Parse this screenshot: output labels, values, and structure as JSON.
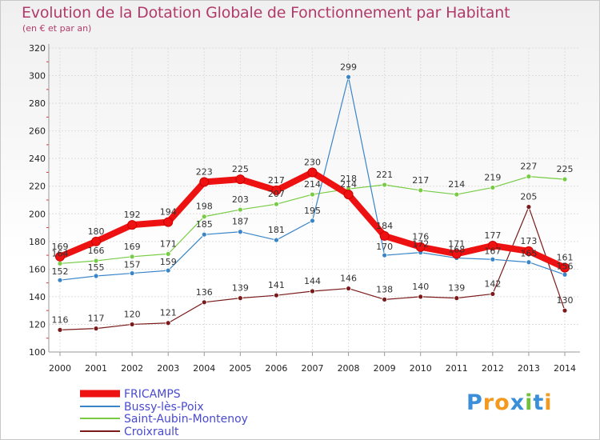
{
  "header": {
    "title": "Evolution de la Dotation Globale de Fonctionnement par Habitant",
    "subtitle": "(en € et par an)"
  },
  "logo": {
    "text": "Proxiti",
    "letters": [
      "P",
      "r",
      "o",
      "x",
      "i",
      "t",
      "i"
    ],
    "colors": [
      "#3a8fd8",
      "#f39a1e",
      "#f39a1e",
      "#3a8fd8",
      "#6fc23a",
      "#3a8fd8",
      "#f39a1e"
    ]
  },
  "chart_data": {
    "type": "line",
    "title": "Evolution de la Dotation Globale de Fonctionnement par Habitant",
    "subtitle": "(en € et par an)",
    "xlabel": "",
    "ylabel": "",
    "ylim": [
      100,
      320
    ],
    "yticks": [
      100,
      120,
      140,
      160,
      180,
      200,
      220,
      240,
      260,
      280,
      300,
      320
    ],
    "grid": true,
    "legend_position": "bottom-left",
    "x": [
      "2000",
      "2001",
      "2002",
      "2003",
      "2004",
      "2005",
      "2006",
      "2007",
      "2008",
      "2009",
      "2010",
      "2011",
      "2012",
      "2013",
      "2014"
    ],
    "series": [
      {
        "name": "FRICAMPS",
        "color": "#ee1111",
        "values": [
          169,
          180,
          192,
          194,
          223,
          225,
          217,
          230,
          214,
          184,
          176,
          171,
          177,
          173,
          161
        ],
        "labels": [
          "169",
          "180",
          "192",
          "194",
          "223",
          "225",
          "217",
          "230",
          "214",
          "184",
          "176",
          "171",
          "177",
          "173",
          "161"
        ]
      },
      {
        "name": "Bussy-lès-Poix",
        "color": "#3a85c8",
        "values": [
          152,
          155,
          157,
          159,
          185,
          187,
          181,
          195,
          299,
          170,
          172,
          168,
          167,
          165,
          156
        ],
        "labels": [
          "152",
          "155",
          "157",
          "159",
          "185",
          "187",
          "181",
          "195",
          "299",
          "170",
          "172",
          "168",
          "167",
          "165",
          "156"
        ]
      },
      {
        "name": "Saint-Aubin-Montenoy",
        "color": "#77cc44",
        "values": [
          164,
          166,
          169,
          171,
          198,
          203,
          207,
          214,
          218,
          221,
          217,
          214,
          219,
          227,
          225
        ],
        "labels": [
          "164",
          "166",
          "169",
          "171",
          "198",
          "203",
          "207",
          "214",
          "218",
          "221",
          "217",
          "214",
          "219",
          "227",
          "225"
        ]
      },
      {
        "name": "Croixrault",
        "color": "#7a1a1a",
        "values": [
          116,
          117,
          120,
          121,
          136,
          139,
          141,
          144,
          146,
          138,
          140,
          139,
          142,
          205,
          130
        ],
        "labels": [
          "116",
          "117",
          "120",
          "121",
          "136",
          "139",
          "141",
          "144",
          "146",
          "138",
          "140",
          "139",
          "142",
          "205",
          "130"
        ]
      }
    ]
  }
}
